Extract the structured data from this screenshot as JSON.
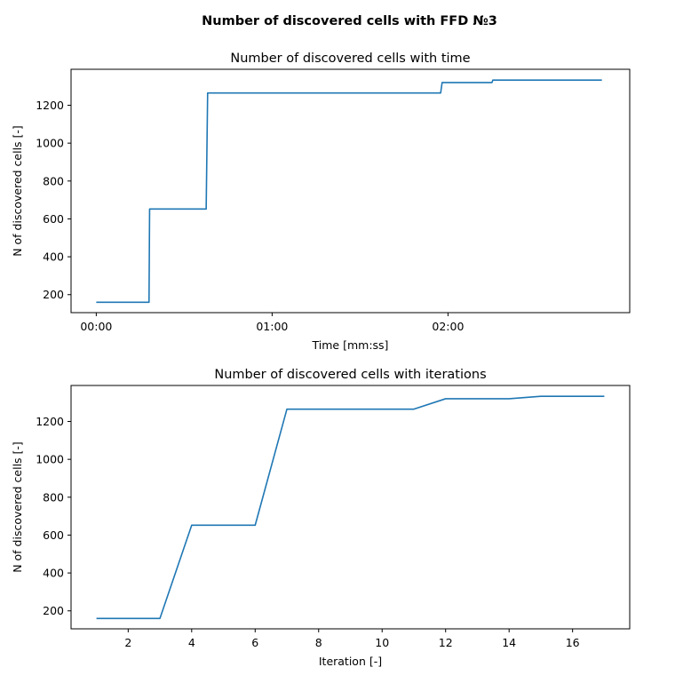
{
  "figure": {
    "title": "Number of discovered cells with FFD №3"
  },
  "chart_data": [
    {
      "type": "line",
      "title": "Number of discovered cells with time",
      "xlabel": "Time [mm:ss]",
      "ylabel": "N of discovered cells [-]",
      "x_tick_labels": [
        "00:00",
        "01:00",
        "02:00"
      ],
      "x_tick_values_seconds": [
        0,
        60,
        120
      ],
      "xlim_seconds": [
        -8.6,
        182
      ],
      "ylim": [
        105,
        1390
      ],
      "y_ticks": [
        200,
        400,
        600,
        800,
        1000,
        1200
      ],
      "grid": false,
      "series": [
        {
          "color": "#1f77b4",
          "x_seconds": [
            0,
            18,
            18.2,
            37.5,
            38,
            117.5,
            118,
            135,
            135.3,
            172.5
          ],
          "y": [
            160,
            160,
            652,
            652,
            1265,
            1265,
            1320,
            1320,
            1333,
            1333
          ]
        }
      ]
    },
    {
      "type": "line",
      "title": "Number of discovered cells with iterations",
      "xlabel": "Iteration [-]",
      "ylabel": "N of discovered cells [-]",
      "xlim": [
        0.2,
        17.8
      ],
      "ylim": [
        105,
        1390
      ],
      "x_ticks": [
        2,
        4,
        6,
        8,
        10,
        12,
        14,
        16
      ],
      "y_ticks": [
        200,
        400,
        600,
        800,
        1000,
        1200
      ],
      "grid": false,
      "series": [
        {
          "color": "#1f77b4",
          "x": [
            1,
            2,
            3,
            4,
            5,
            6,
            7,
            8,
            9,
            10,
            11,
            12,
            13,
            14,
            15,
            16,
            17
          ],
          "y": [
            160,
            160,
            160,
            652,
            652,
            652,
            1265,
            1265,
            1265,
            1265,
            1265,
            1320,
            1320,
            1320,
            1333,
            1333,
            1333
          ]
        }
      ]
    }
  ]
}
